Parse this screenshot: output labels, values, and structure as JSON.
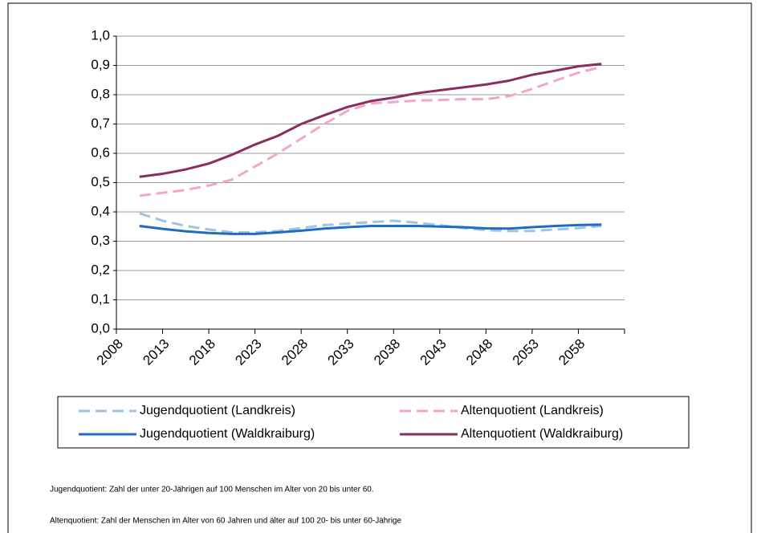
{
  "chart_data": {
    "type": "line",
    "x": [
      2010.5,
      2013,
      2015.5,
      2018,
      2020.5,
      2023,
      2025.5,
      2028,
      2030.5,
      2033,
      2035.5,
      2038,
      2040.5,
      2043,
      2045.5,
      2048,
      2050.5,
      2053,
      2055.5,
      2058,
      2060.5
    ],
    "series": [
      {
        "name": "Jugendquotient (Landkreis)",
        "color": "#9dc3e6",
        "dashed": true,
        "values": [
          0.395,
          0.37,
          0.352,
          0.34,
          0.33,
          0.33,
          0.335,
          0.345,
          0.355,
          0.36,
          0.365,
          0.37,
          0.363,
          0.355,
          0.345,
          0.338,
          0.335,
          0.335,
          0.34,
          0.345,
          0.352
        ]
      },
      {
        "name": "Altenquotient (Landkreis)",
        "color": "#f4a6c8",
        "dashed": true,
        "values": [
          0.455,
          0.465,
          0.475,
          0.49,
          0.51,
          0.555,
          0.6,
          0.65,
          0.7,
          0.745,
          0.77,
          0.775,
          0.78,
          0.782,
          0.785,
          0.785,
          0.795,
          0.82,
          0.848,
          0.875,
          0.895
        ]
      },
      {
        "name": "Jugendquotient (Waldkraiburg)",
        "color": "#1f6dc2",
        "dashed": false,
        "values": [
          0.352,
          0.342,
          0.334,
          0.328,
          0.325,
          0.325,
          0.33,
          0.336,
          0.343,
          0.348,
          0.352,
          0.352,
          0.352,
          0.35,
          0.348,
          0.344,
          0.343,
          0.348,
          0.352,
          0.355,
          0.357
        ]
      },
      {
        "name": "Altenquotient (Waldkraiburg)",
        "color": "#8b2d5e",
        "dashed": false,
        "values": [
          0.52,
          0.53,
          0.545,
          0.565,
          0.595,
          0.63,
          0.66,
          0.7,
          0.73,
          0.758,
          0.778,
          0.79,
          0.805,
          0.815,
          0.825,
          0.835,
          0.848,
          0.868,
          0.882,
          0.897,
          0.905
        ]
      }
    ],
    "xlim": [
      2008,
      2063
    ],
    "xticks": [
      2008,
      2013,
      2018,
      2023,
      2028,
      2033,
      2038,
      2043,
      2048,
      2053,
      2058
    ],
    "ylim": [
      0,
      1
    ],
    "yticks": [
      {
        "value": 0,
        "label": "0,0"
      },
      {
        "value": 0.1,
        "label": "0,1"
      },
      {
        "value": 0.2,
        "label": "0,2"
      },
      {
        "value": 0.3,
        "label": "0,3"
      },
      {
        "value": 0.4,
        "label": "0,4"
      },
      {
        "value": 0.5,
        "label": "0,5"
      },
      {
        "value": 0.6,
        "label": "0,6"
      },
      {
        "value": 0.7,
        "label": "0,7"
      },
      {
        "value": 0.8,
        "label": "0,8"
      },
      {
        "value": 0.9,
        "label": "0,9"
      },
      {
        "value": 1,
        "label": "1,0"
      }
    ],
    "grid": true,
    "legend": "bottom",
    "notes": [
      "Jugendquotient: Zahl der unter 20-Jährigen auf 100 Menschen im Alter von 20 bis unter 60.",
      "Altenquotient: Zahl der Menschen im Alter von 60 Jahren und älter auf 100 20- bis unter 60-Jährige"
    ]
  }
}
